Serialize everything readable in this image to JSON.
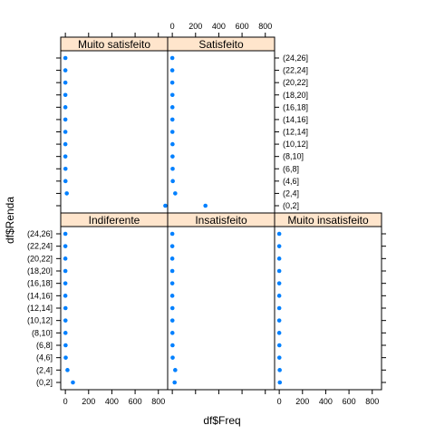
{
  "chart_data": {
    "type": "scatter",
    "subtype": "trellis-dotplot",
    "xlabel": "df$Freq",
    "ylabel": "df$Renda",
    "xlim": [
      -40,
      880
    ],
    "xticks": [
      0,
      200,
      400,
      600,
      800
    ],
    "categories": [
      "(0,2]",
      "(2,4]",
      "(4,6]",
      "(6,8]",
      "(8,10]",
      "(10,12]",
      "(12,14]",
      "(14,16]",
      "(16,18]",
      "(18,20]",
      "(20,22]",
      "(22,24]",
      "(24,26]"
    ],
    "grid": false,
    "point_color": "#0080ff",
    "strip_color": "#ffe5cc",
    "panels": [
      {
        "name": "Indiferente",
        "values": [
          65,
          18,
          3,
          2,
          1,
          1,
          1,
          0,
          0,
          0,
          0,
          0,
          0
        ]
      },
      {
        "name": "Insatisfeito",
        "values": [
          20,
          25,
          3,
          2,
          1,
          1,
          1,
          0,
          0,
          0,
          0,
          0,
          0
        ]
      },
      {
        "name": "Muito insatisfeito",
        "values": [
          5,
          4,
          1,
          1,
          0,
          0,
          0,
          0,
          0,
          0,
          0,
          0,
          0
        ]
      },
      {
        "name": "Muito satisfeito",
        "values": [
          860,
          12,
          1,
          1,
          0,
          0,
          0,
          0,
          0,
          0,
          0,
          0,
          0
        ]
      },
      {
        "name": "Satisfeito",
        "values": [
          285,
          25,
          4,
          3,
          2,
          2,
          1,
          1,
          1,
          1,
          0,
          0,
          0
        ]
      }
    ]
  }
}
